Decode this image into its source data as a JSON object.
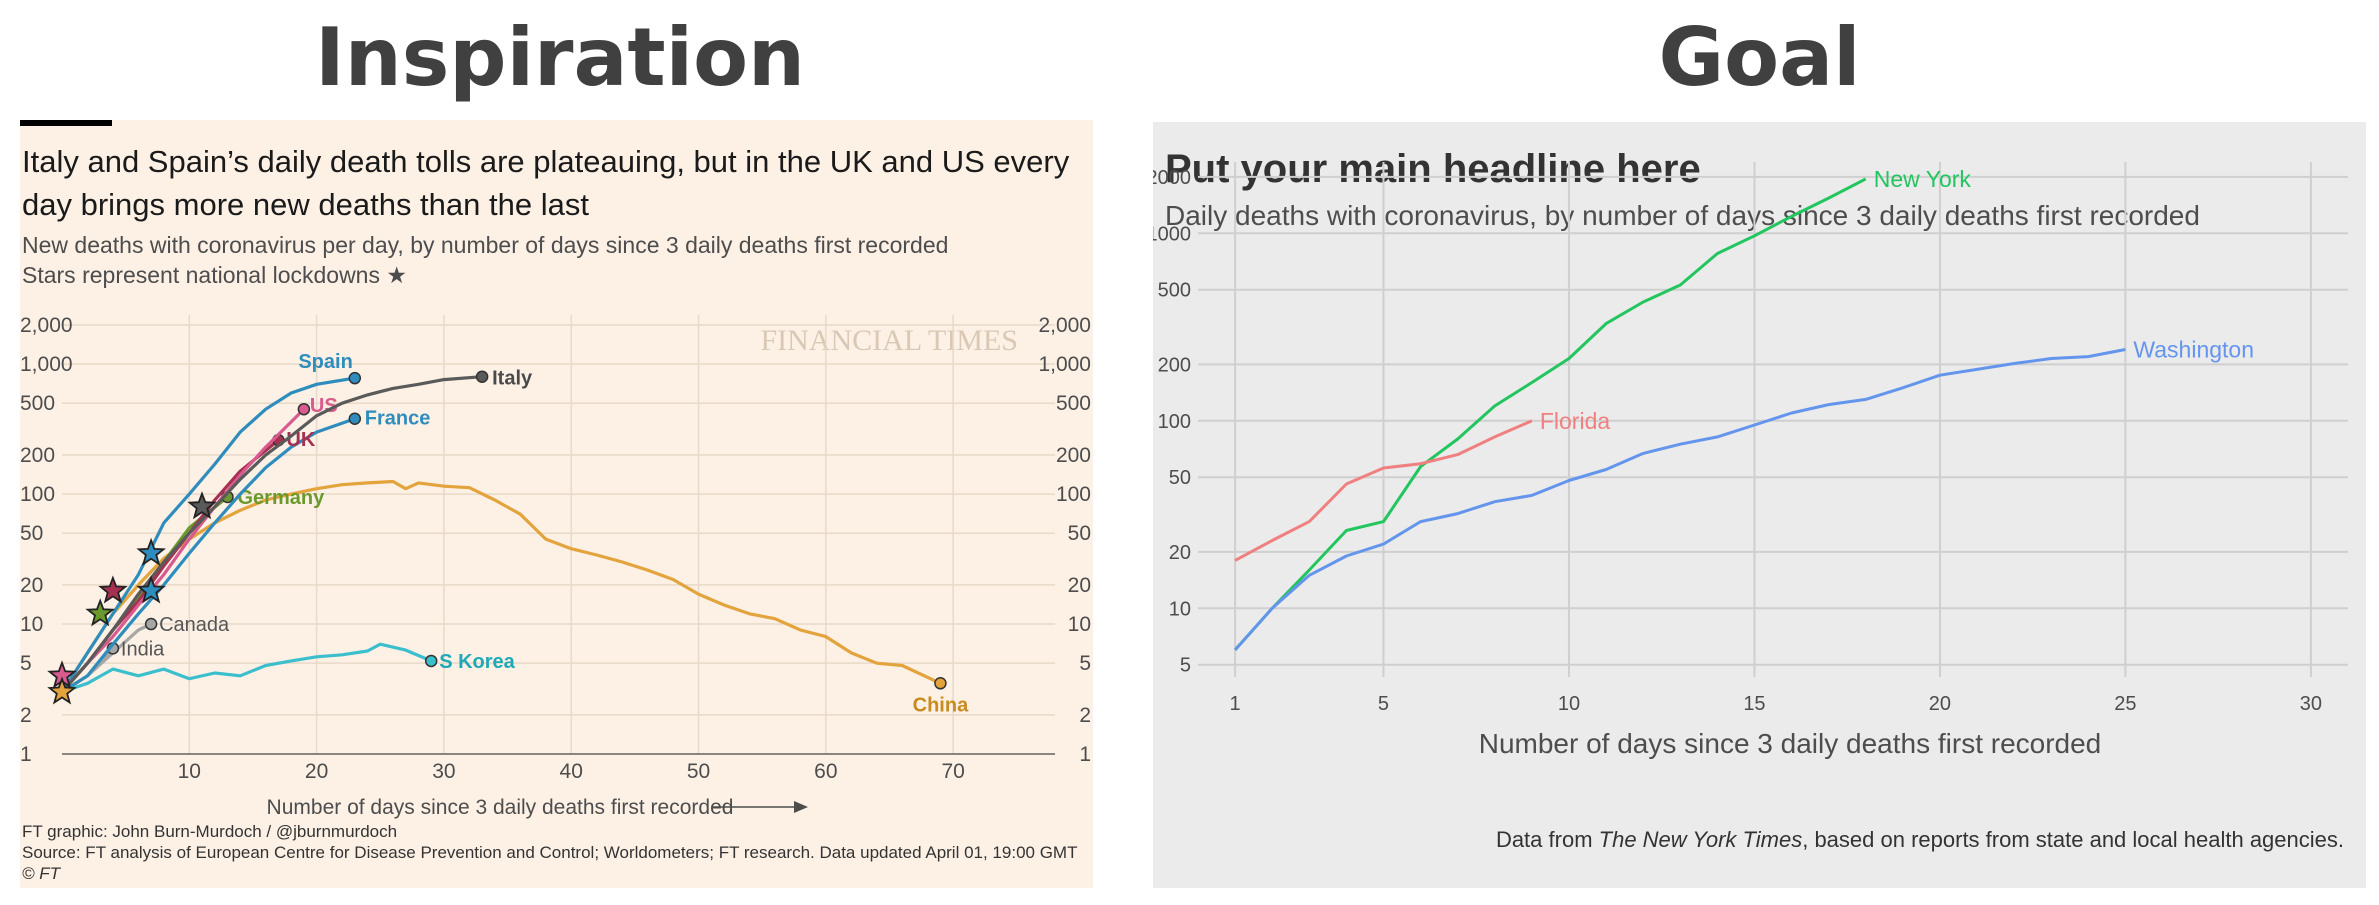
{
  "left": {
    "section_title": "Inspiration",
    "headline": "Italy and Spain’s daily death tolls are plateauing, but in the UK and US every day brings more new deaths than the last",
    "subtitle": "New deaths with coronavirus per day, by number of days since 3 daily deaths first recorded",
    "subtitle2": "Stars represent national lockdowns ★",
    "watermark": "FINANCIAL TIMES",
    "footer_graphic": "FT graphic: John Burn-Murdoch / @jburnmurdoch",
    "footer_source": "Source: FT analysis of European Centre for Disease Prevention and Control; Worldometers; FT research. Data updated April 01, 19:00 GMT",
    "footer_copyright": "© FT"
  },
  "right": {
    "section_title": "Goal",
    "headline": "Put your main headline here",
    "subtitle": "Daily deaths with coronavirus, by number of days since 3 daily deaths first recorded",
    "caption_prefix": "Data from ",
    "caption_source": "The New York Times",
    "caption_suffix": ", based on reports from state and local health agencies."
  },
  "chart_data": [
    {
      "type": "line",
      "xlabel": "Number of days since 3 daily deaths first recorded",
      "ylabel": "",
      "yscale": "log",
      "xlim": [
        0,
        78
      ],
      "ylim": [
        1,
        2000
      ],
      "x_ticks": [
        10,
        20,
        30,
        40,
        50,
        60,
        70
      ],
      "y_ticks": [
        1,
        2,
        5,
        10,
        20,
        50,
        100,
        200,
        500,
        1000,
        2000
      ],
      "y_tick_labels": [
        "1",
        "2",
        "5",
        "10",
        "20",
        "50",
        "100",
        "200",
        "500",
        "1,000",
        "2,000"
      ],
      "grid": true,
      "lockdown_marker": "star",
      "series": [
        {
          "name": "Italy",
          "color": "#5a5a5a",
          "x": [
            0,
            2,
            4,
            6,
            8,
            10,
            12,
            14,
            16,
            18,
            20,
            22,
            24,
            26,
            28,
            30,
            33
          ],
          "y": [
            3,
            5,
            9,
            17,
            30,
            50,
            80,
            130,
            200,
            280,
            400,
            500,
            580,
            650,
            700,
            760,
            800
          ]
        },
        {
          "name": "Spain",
          "color": "#2f8dbd",
          "x": [
            0,
            2,
            4,
            6,
            8,
            10,
            12,
            14,
            16,
            18,
            20,
            23
          ],
          "y": [
            3,
            6,
            12,
            24,
            60,
            100,
            170,
            300,
            450,
            600,
            700,
            780
          ]
        },
        {
          "name": "France",
          "color": "#2f8dbd",
          "x": [
            0,
            2,
            4,
            6,
            8,
            10,
            12,
            14,
            16,
            18,
            20,
            23
          ],
          "y": [
            3,
            4,
            7,
            12,
            20,
            35,
            60,
            100,
            160,
            230,
            300,
            380
          ]
        },
        {
          "name": "US",
          "color": "#d85a8e",
          "x": [
            0,
            2,
            4,
            6,
            8,
            10,
            12,
            14,
            16,
            19
          ],
          "y": [
            3,
            5,
            8,
            14,
            24,
            45,
            80,
            140,
            230,
            450
          ]
        },
        {
          "name": "UK",
          "color": "#a63050",
          "x": [
            0,
            2,
            4,
            6,
            8,
            10,
            12,
            14,
            17
          ],
          "y": [
            3,
            5,
            9,
            15,
            28,
            50,
            90,
            150,
            260
          ]
        },
        {
          "name": "Germany",
          "color": "#6b9a2c",
          "x": [
            0,
            2,
            4,
            6,
            8,
            10,
            13
          ],
          "y": [
            3,
            5,
            9,
            16,
            30,
            55,
            95
          ]
        },
        {
          "name": "China",
          "color": "#e3a33d",
          "x": [
            0,
            2,
            4,
            6,
            8,
            10,
            12,
            14,
            16,
            18,
            20,
            22,
            24,
            26,
            27,
            28,
            30,
            32,
            34,
            36,
            38,
            40,
            42,
            44,
            46,
            48,
            50,
            52,
            54,
            56,
            58,
            60,
            62,
            64,
            66,
            69
          ],
          "y": [
            3,
            6,
            12,
            20,
            32,
            45,
            60,
            75,
            90,
            100,
            110,
            118,
            122,
            125,
            110,
            122,
            115,
            112,
            90,
            70,
            45,
            38,
            34,
            30,
            26,
            22,
            17,
            14,
            12,
            11,
            9,
            8,
            6,
            5,
            4.8,
            3.5
          ]
        },
        {
          "name": "S Korea",
          "color": "#3cbfcc",
          "x": [
            0,
            2,
            4,
            6,
            8,
            10,
            12,
            14,
            16,
            18,
            20,
            22,
            24,
            25,
            27,
            29
          ],
          "y": [
            3,
            3.5,
            4.5,
            4,
            4.5,
            3.8,
            4.2,
            4,
            4.8,
            5.2,
            5.6,
            5.8,
            6.2,
            7,
            6.3,
            5.2
          ]
        },
        {
          "name": "Canada",
          "color": "#a6a6a6",
          "x": [
            0,
            2,
            4,
            6,
            7
          ],
          "y": [
            3,
            4,
            6,
            9,
            10
          ]
        },
        {
          "name": "India",
          "color": "#a6a6a6",
          "x": [
            0,
            2,
            4
          ],
          "y": [
            3,
            4,
            6.5
          ]
        }
      ],
      "lockdowns": [
        {
          "series": "Italy",
          "x": 11,
          "y": 80
        },
        {
          "series": "Spain",
          "x": 7,
          "y": 35
        },
        {
          "series": "France",
          "x": 7,
          "y": 18
        },
        {
          "series": "UK",
          "x": 4,
          "y": 18
        },
        {
          "series": "Germany",
          "x": 3,
          "y": 12
        },
        {
          "series": "US",
          "x": 0,
          "y": 4
        },
        {
          "series": "China",
          "x": 0,
          "y": 3
        }
      ]
    },
    {
      "type": "line",
      "xlabel": "Number of days since 3 daily deaths first recorded",
      "ylabel": "",
      "yscale": "log",
      "xlim": [
        0,
        31
      ],
      "ylim": [
        4.3,
        2400
      ],
      "x_ticks": [
        1,
        5,
        10,
        15,
        20,
        25,
        30
      ],
      "y_ticks": [
        5,
        10,
        20,
        50,
        100,
        200,
        500,
        1000,
        2000
      ],
      "grid": true,
      "series": [
        {
          "name": "New York",
          "color": "#22c55e",
          "x": [
            1,
            2,
            3,
            4,
            5,
            6,
            7,
            8,
            9,
            10,
            11,
            12,
            13,
            14,
            15,
            16,
            17,
            18
          ],
          "y": [
            6,
            10,
            16,
            26,
            29,
            57,
            80,
            120,
            160,
            215,
            330,
            430,
            530,
            780,
            970,
            1230,
            1540,
            1950
          ]
        },
        {
          "name": "Florida",
          "color": "#f08080",
          "x": [
            1,
            2,
            3,
            4,
            5,
            6,
            7,
            8,
            9
          ],
          "y": [
            18,
            23,
            29,
            46,
            56,
            59,
            66,
            82,
            100
          ]
        },
        {
          "name": "Washington",
          "color": "#6495ed",
          "x": [
            1,
            2,
            3,
            4,
            5,
            6,
            7,
            8,
            9,
            10,
            11,
            12,
            13,
            14,
            15,
            16,
            17,
            18,
            19,
            20,
            21,
            22,
            23,
            24,
            25
          ],
          "y": [
            6,
            10,
            15,
            19,
            22,
            29,
            32,
            37,
            40,
            48,
            55,
            67,
            75,
            82,
            95,
            110,
            122,
            130,
            150,
            175,
            188,
            202,
            215,
            220,
            240
          ]
        }
      ]
    }
  ]
}
